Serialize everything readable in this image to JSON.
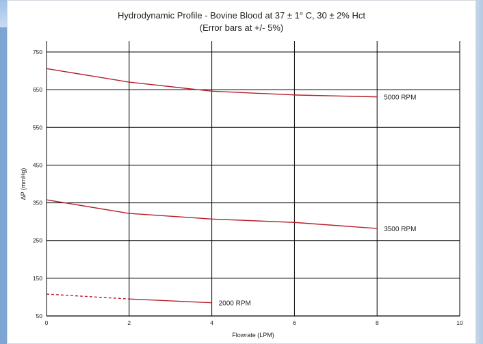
{
  "chart_data": {
    "type": "line",
    "title": "Hydrodynamic Profile - Bovine Blood at 37 ± 1° C, 30 ± 2% Hct",
    "subtitle": "(Error bars at +/- 5%)",
    "xlabel": "Flowrate (LPM)",
    "ylabel": "ΔP (mmHg)",
    "xlim": [
      0,
      10
    ],
    "ylim": [
      50,
      750
    ],
    "xticks": [
      "0",
      "2",
      "4",
      "6",
      "8",
      "10"
    ],
    "yticks": [
      "50",
      "150",
      "250",
      "350",
      "450",
      "550",
      "650",
      "750"
    ],
    "grid": true,
    "line_color": "#b3202a",
    "series": [
      {
        "name": "5000 RPM",
        "x": [
          0,
          2,
          4,
          6,
          8
        ],
        "y": [
          706,
          670,
          646,
          636,
          631
        ]
      },
      {
        "name": "3500 RPM",
        "x": [
          0,
          2,
          4,
          6,
          8
        ],
        "y": [
          358,
          322,
          307,
          298,
          282
        ]
      },
      {
        "name": "2000 RPM",
        "x": [
          0,
          2,
          4
        ],
        "y": [
          108,
          95,
          85
        ],
        "dashed_segment": [
          0,
          2
        ]
      }
    ]
  }
}
